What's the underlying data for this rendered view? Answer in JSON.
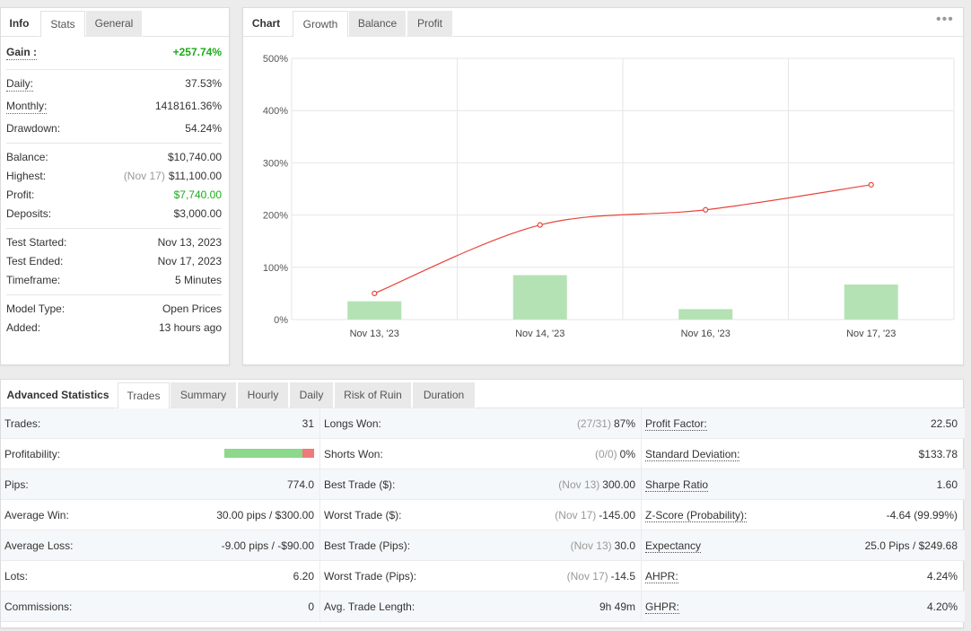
{
  "info_tabs": [
    "Info",
    "Stats",
    "General"
  ],
  "info": {
    "gain_label": "Gain :",
    "gain_value": "+257.74%",
    "daily_label": "Daily:",
    "daily_value": "37.53%",
    "monthly_label": "Monthly:",
    "monthly_value": "1418161.36%",
    "drawdown_label": "Drawdown:",
    "drawdown_value": "54.24%",
    "balance_label": "Balance:",
    "balance_value": "$10,740.00",
    "highest_label": "Highest:",
    "highest_date": "(Nov 17)",
    "highest_value": "$11,100.00",
    "profit_label": "Profit:",
    "profit_value": "$7,740.00",
    "deposits_label": "Deposits:",
    "deposits_value": "$3,000.00",
    "test_started_label": "Test Started:",
    "test_started_value": "Nov 13, 2023",
    "test_ended_label": "Test Ended:",
    "test_ended_value": "Nov 17, 2023",
    "timeframe_label": "Timeframe:",
    "timeframe_value": "5 Minutes",
    "model_type_label": "Model Type:",
    "model_type_value": "Open Prices",
    "added_label": "Added:",
    "added_value": "13 hours ago"
  },
  "chart_tabs": [
    "Chart",
    "Growth",
    "Balance",
    "Profit"
  ],
  "colors": {
    "line": "#e8453c",
    "bar": "#b5e2b5",
    "gain": "#1aab1a",
    "grid": "#e6e6e6"
  },
  "chart_data": {
    "type": "bar+line",
    "categories": [
      "Nov 13, '23",
      "Nov 14, '23",
      "Nov 16, '23",
      "Nov 17, '23"
    ],
    "y_ticks": [
      "0%",
      "100%",
      "200%",
      "300%",
      "400%",
      "500%"
    ],
    "ylim": [
      0,
      500
    ],
    "bars": [
      35,
      85,
      20,
      67
    ],
    "line": [
      50,
      181,
      210,
      258
    ],
    "grid": true
  },
  "adv_tabs": [
    "Advanced Statistics",
    "Trades",
    "Summary",
    "Hourly",
    "Daily",
    "Risk of Ruin",
    "Duration"
  ],
  "adv": {
    "rows": [
      [
        {
          "label": "Trades:",
          "value": "31"
        },
        {
          "label": "Longs Won:",
          "muted": "(27/31)",
          "value": "87%"
        },
        {
          "label": "Profit Factor:",
          "value": "22.50",
          "dotted": true
        }
      ],
      [
        {
          "label": "Profitability:",
          "bar": 0.87
        },
        {
          "label": "Shorts Won:",
          "muted": "(0/0)",
          "value": "0%"
        },
        {
          "label": "Standard Deviation:",
          "value": "$133.78",
          "dotted": true
        }
      ],
      [
        {
          "label": "Pips:",
          "value": "774.0"
        },
        {
          "label": "Best Trade ($):",
          "muted": "(Nov 13)",
          "value": "300.00"
        },
        {
          "label": "Sharpe Ratio",
          "value": "1.60",
          "dotted": true
        }
      ],
      [
        {
          "label": "Average Win:",
          "value": "30.00 pips / $300.00"
        },
        {
          "label": "Worst Trade ($):",
          "muted": "(Nov 17)",
          "value": "-145.00"
        },
        {
          "label": "Z-Score (Probability):",
          "value": "-4.64 (99.99%)",
          "dotted": true
        }
      ],
      [
        {
          "label": "Average Loss:",
          "value": "-9.00 pips / -$90.00"
        },
        {
          "label": "Best Trade (Pips):",
          "muted": "(Nov 13)",
          "value": "30.0"
        },
        {
          "label": "Expectancy",
          "value": "25.0 Pips / $249.68",
          "dotted": true
        }
      ],
      [
        {
          "label": "Lots:",
          "value": "6.20"
        },
        {
          "label": "Worst Trade (Pips):",
          "muted": "(Nov 17)",
          "value": "-14.5"
        },
        {
          "label": "AHPR:",
          "value": "4.24%",
          "dotted": true
        }
      ],
      [
        {
          "label": "Commissions:",
          "value": "0"
        },
        {
          "label": "Avg. Trade Length:",
          "value": "9h 49m"
        },
        {
          "label": "GHPR:",
          "value": "4.20%",
          "dotted": true
        }
      ]
    ]
  }
}
